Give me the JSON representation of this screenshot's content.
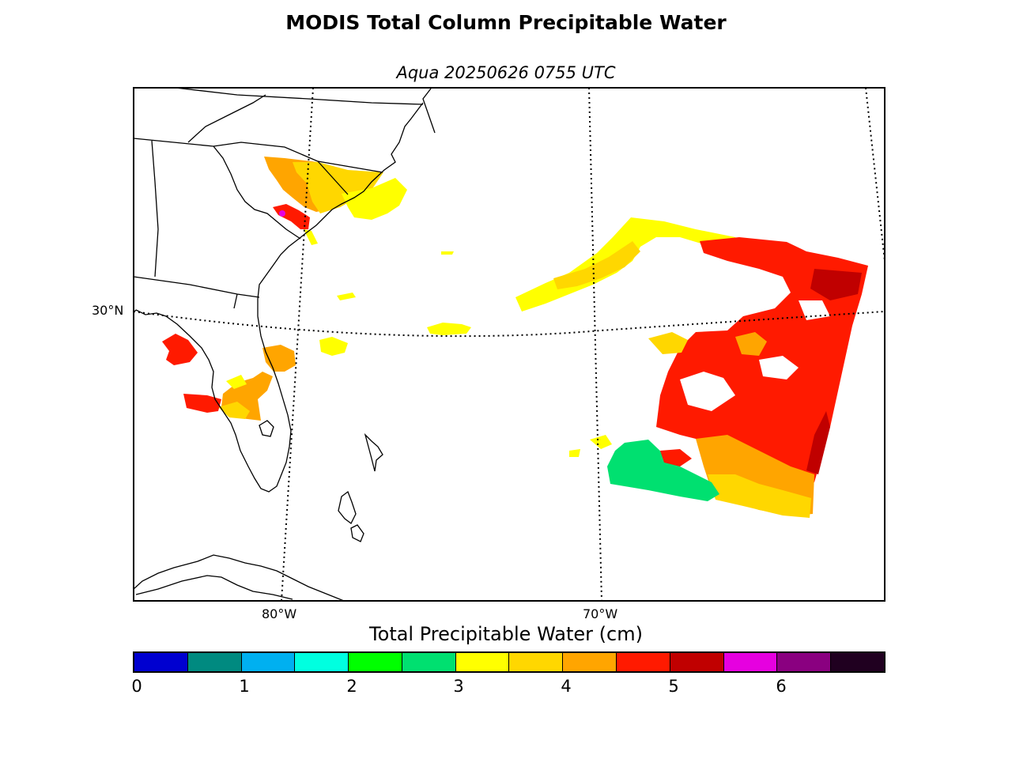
{
  "title": "MODIS Total Column Precipitable Water",
  "subtitle": "Aqua 20250626 0755 UTC",
  "map": {
    "latitude_labels": [
      "30°N"
    ],
    "longitude_labels": [
      "80°W",
      "70°W"
    ],
    "graticule_style": "dotted",
    "coastline_color": "#000000"
  },
  "colorbar": {
    "label": "Total Precipitable Water (cm)",
    "tick_labels": [
      "0",
      "1",
      "2",
      "3",
      "4",
      "5",
      "6"
    ],
    "range": [
      0,
      7
    ],
    "step": 0.5,
    "colors": [
      "#0000d0",
      "#008a80",
      "#00b0f0",
      "#00ffe0",
      "#00ff00",
      "#00e070",
      "#ffff00",
      "#ffd700",
      "#ffa500",
      "#ff1a00",
      "#c00000",
      "#e600e0",
      "#8a0080",
      "#200020"
    ]
  }
}
